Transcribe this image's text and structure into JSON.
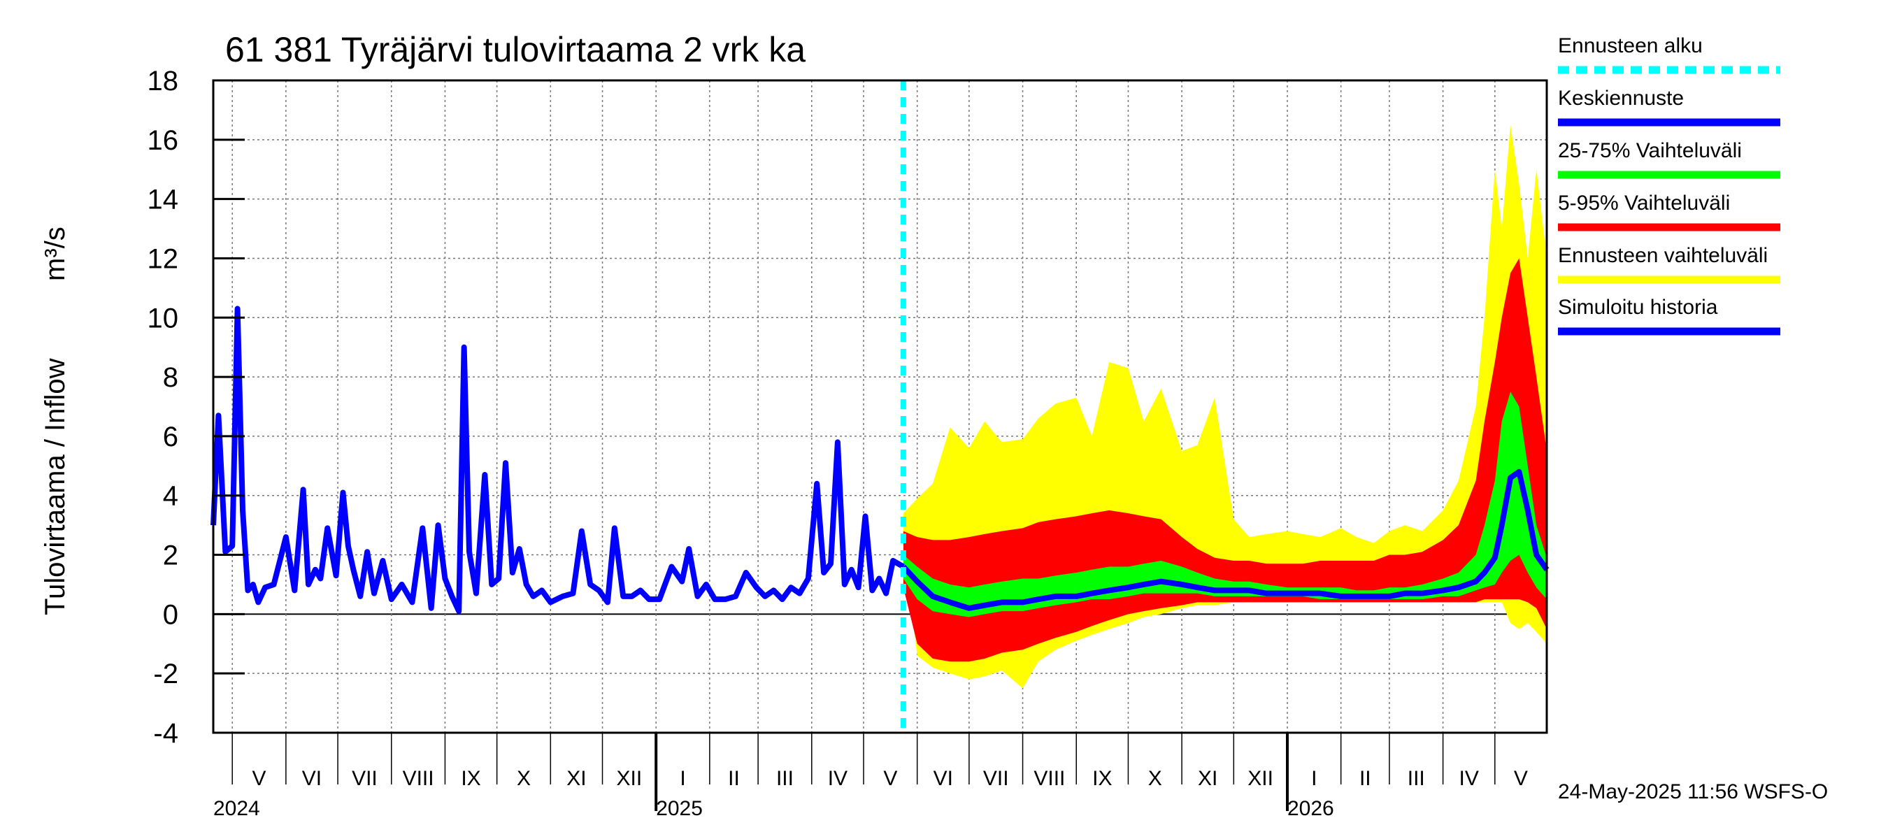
{
  "chart_data": {
    "type": "area",
    "title": "61 381 Tyräjärvi tulovirtaama 2 vrk ka",
    "ylabel": "Tulovirtaama / Inflow",
    "yunit": "m³/s",
    "ylim": [
      -4,
      18
    ],
    "yticks": [
      "-4",
      "-2",
      "0",
      "2",
      "4",
      "6",
      "8",
      "10",
      "12",
      "14",
      "16",
      "18"
    ],
    "grid": true,
    "legend_placement": "right",
    "x_start": "2024-04-20",
    "x_end": "2026-05-31",
    "forecast_start": "2025-05-24",
    "months": [
      {
        "label": "V",
        "start": "2024-05-01"
      },
      {
        "label": "VI",
        "start": "2024-06-01"
      },
      {
        "label": "VII",
        "start": "2024-07-01"
      },
      {
        "label": "VIII",
        "start": "2024-08-01"
      },
      {
        "label": "IX",
        "start": "2024-09-01"
      },
      {
        "label": "X",
        "start": "2024-10-01"
      },
      {
        "label": "XI",
        "start": "2024-11-01"
      },
      {
        "label": "XII",
        "start": "2024-12-01"
      },
      {
        "label": "I",
        "start": "2025-01-01"
      },
      {
        "label": "II",
        "start": "2025-02-01"
      },
      {
        "label": "III",
        "start": "2025-03-01"
      },
      {
        "label": "IV",
        "start": "2025-04-01"
      },
      {
        "label": "V",
        "start": "2025-05-01"
      },
      {
        "label": "VI",
        "start": "2025-06-01"
      },
      {
        "label": "VII",
        "start": "2025-07-01"
      },
      {
        "label": "VIII",
        "start": "2025-08-01"
      },
      {
        "label": "IX",
        "start": "2025-09-01"
      },
      {
        "label": "X",
        "start": "2025-10-01"
      },
      {
        "label": "XI",
        "start": "2025-11-01"
      },
      {
        "label": "XII",
        "start": "2025-12-01"
      },
      {
        "label": "I",
        "start": "2026-01-01"
      },
      {
        "label": "II",
        "start": "2026-02-01"
      },
      {
        "label": "III",
        "start": "2026-03-01"
      },
      {
        "label": "IV",
        "start": "2026-04-01"
      },
      {
        "label": "V",
        "start": "2026-05-01"
      }
    ],
    "years": [
      {
        "label": "2024",
        "date": "2024-04-20"
      },
      {
        "label": "2025",
        "date": "2025-01-01"
      },
      {
        "label": "2026",
        "date": "2026-01-01"
      }
    ],
    "history": {
      "name": "Simuloitu historia",
      "color": "#0000ff",
      "x": [
        "2024-04-20",
        "2024-04-23",
        "2024-04-27",
        "2024-05-01",
        "2024-05-04",
        "2024-05-07",
        "2024-05-10",
        "2024-05-13",
        "2024-05-16",
        "2024-05-20",
        "2024-05-25",
        "2024-06-01",
        "2024-06-06",
        "2024-06-11",
        "2024-06-14",
        "2024-06-18",
        "2024-06-21",
        "2024-06-25",
        "2024-06-30",
        "2024-07-04",
        "2024-07-07",
        "2024-07-10",
        "2024-07-14",
        "2024-07-18",
        "2024-07-22",
        "2024-07-27",
        "2024-08-01",
        "2024-08-07",
        "2024-08-13",
        "2024-08-19",
        "2024-08-24",
        "2024-08-28",
        "2024-09-01",
        "2024-09-05",
        "2024-09-09",
        "2024-09-12",
        "2024-09-15",
        "2024-09-19",
        "2024-09-24",
        "2024-09-28",
        "2024-10-02",
        "2024-10-06",
        "2024-10-10",
        "2024-10-14",
        "2024-10-18",
        "2024-10-22",
        "2024-10-27",
        "2024-11-01",
        "2024-11-08",
        "2024-11-14",
        "2024-11-19",
        "2024-11-24",
        "2024-11-29",
        "2024-12-04",
        "2024-12-08",
        "2024-12-13",
        "2024-12-18",
        "2024-12-23",
        "2024-12-28",
        "2025-01-03",
        "2025-01-10",
        "2025-01-16",
        "2025-01-20",
        "2025-01-25",
        "2025-01-30",
        "2025-02-04",
        "2025-02-10",
        "2025-02-16",
        "2025-02-22",
        "2025-02-28",
        "2025-03-05",
        "2025-03-10",
        "2025-03-15",
        "2025-03-20",
        "2025-03-25",
        "2025-03-30",
        "2025-04-04",
        "2025-04-08",
        "2025-04-12",
        "2025-04-16",
        "2025-04-20",
        "2025-04-24",
        "2025-04-28",
        "2025-05-02",
        "2025-05-06",
        "2025-05-10",
        "2025-05-14",
        "2025-05-18",
        "2025-05-24"
      ],
      "y": [
        3.0,
        6.7,
        2.1,
        2.3,
        10.3,
        3.5,
        0.8,
        1.0,
        0.4,
        0.9,
        1.0,
        2.6,
        0.8,
        4.2,
        1.0,
        1.5,
        1.2,
        2.9,
        1.3,
        4.1,
        2.3,
        1.5,
        0.6,
        2.1,
        0.7,
        1.8,
        0.5,
        1.0,
        0.4,
        2.9,
        0.2,
        3.0,
        1.2,
        0.6,
        0.1,
        9.0,
        2.1,
        0.7,
        4.7,
        1.0,
        1.2,
        5.1,
        1.4,
        2.2,
        1.0,
        0.6,
        0.8,
        0.4,
        0.6,
        0.7,
        2.8,
        1.0,
        0.8,
        0.4,
        2.9,
        0.6,
        0.6,
        0.8,
        0.5,
        0.5,
        1.6,
        1.1,
        2.2,
        0.6,
        1.0,
        0.5,
        0.5,
        0.6,
        1.4,
        0.9,
        0.6,
        0.8,
        0.5,
        0.9,
        0.7,
        1.2,
        4.4,
        1.4,
        1.7,
        5.8,
        1.0,
        1.5,
        0.9,
        3.3,
        0.8,
        1.2,
        0.7,
        1.8,
        1.6
      ]
    },
    "forecast": {
      "x": [
        "2025-05-24",
        "2025-06-01",
        "2025-06-10",
        "2025-06-20",
        "2025-07-01",
        "2025-07-10",
        "2025-07-20",
        "2025-08-01",
        "2025-08-10",
        "2025-08-20",
        "2025-09-01",
        "2025-09-10",
        "2025-09-20",
        "2025-10-01",
        "2025-10-10",
        "2025-10-20",
        "2025-11-01",
        "2025-11-10",
        "2025-11-20",
        "2025-12-01",
        "2025-12-10",
        "2025-12-20",
        "2026-01-01",
        "2026-01-10",
        "2026-01-20",
        "2026-02-01",
        "2026-02-10",
        "2026-02-20",
        "2026-03-01",
        "2026-03-10",
        "2026-03-20",
        "2026-04-01",
        "2026-04-10",
        "2026-04-20",
        "2026-04-25",
        "2026-05-01",
        "2026-05-05",
        "2026-05-10",
        "2026-05-15",
        "2026-05-20",
        "2026-05-25",
        "2026-05-31"
      ],
      "median": [
        1.6,
        1.1,
        0.6,
        0.4,
        0.2,
        0.3,
        0.4,
        0.4,
        0.5,
        0.6,
        0.6,
        0.7,
        0.8,
        0.9,
        1.0,
        1.1,
        1.0,
        0.9,
        0.8,
        0.8,
        0.8,
        0.7,
        0.7,
        0.7,
        0.7,
        0.6,
        0.6,
        0.6,
        0.6,
        0.7,
        0.7,
        0.8,
        0.9,
        1.1,
        1.4,
        1.9,
        3.0,
        4.6,
        4.8,
        3.5,
        2.0,
        1.5
      ],
      "p25": [
        1.2,
        0.5,
        0.1,
        0.0,
        -0.1,
        0.0,
        0.1,
        0.1,
        0.2,
        0.3,
        0.4,
        0.5,
        0.5,
        0.6,
        0.7,
        0.7,
        0.7,
        0.7,
        0.6,
        0.6,
        0.6,
        0.6,
        0.6,
        0.6,
        0.5,
        0.5,
        0.5,
        0.5,
        0.5,
        0.5,
        0.5,
        0.6,
        0.6,
        0.8,
        0.9,
        1.0,
        1.4,
        1.8,
        2.0,
        1.4,
        0.9,
        0.5
      ],
      "p75": [
        2.0,
        1.6,
        1.2,
        1.0,
        0.9,
        1.0,
        1.1,
        1.2,
        1.2,
        1.3,
        1.4,
        1.5,
        1.6,
        1.6,
        1.7,
        1.8,
        1.6,
        1.4,
        1.2,
        1.1,
        1.1,
        1.0,
        0.9,
        0.9,
        0.9,
        0.9,
        0.8,
        0.8,
        0.9,
        0.9,
        1.0,
        1.2,
        1.4,
        2.0,
        3.0,
        4.5,
        6.5,
        7.5,
        7.0,
        5.0,
        3.0,
        1.9
      ],
      "p5": [
        0.9,
        -1.0,
        -1.5,
        -1.6,
        -1.6,
        -1.5,
        -1.3,
        -1.2,
        -1.0,
        -0.8,
        -0.6,
        -0.4,
        -0.2,
        0.0,
        0.1,
        0.2,
        0.3,
        0.4,
        0.4,
        0.4,
        0.4,
        0.4,
        0.4,
        0.4,
        0.4,
        0.4,
        0.4,
        0.4,
        0.4,
        0.4,
        0.4,
        0.4,
        0.4,
        0.4,
        0.5,
        0.5,
        0.5,
        0.5,
        0.5,
        0.4,
        0.2,
        -0.5
      ],
      "p95": [
        2.8,
        2.6,
        2.5,
        2.5,
        2.6,
        2.7,
        2.8,
        2.9,
        3.1,
        3.2,
        3.3,
        3.4,
        3.5,
        3.4,
        3.3,
        3.2,
        2.6,
        2.2,
        1.9,
        1.8,
        1.8,
        1.7,
        1.7,
        1.7,
        1.8,
        1.8,
        1.8,
        1.8,
        2.0,
        2.0,
        2.1,
        2.5,
        3.0,
        4.5,
        6.5,
        8.5,
        10.0,
        11.5,
        12.0,
        10.0,
        8.0,
        5.5
      ],
      "min": [
        2.5,
        -1.4,
        -1.8,
        -2.0,
        -2.2,
        -2.1,
        -1.9,
        -2.5,
        -1.6,
        -1.2,
        -0.9,
        -0.7,
        -0.5,
        -0.3,
        -0.1,
        0.0,
        0.2,
        0.3,
        0.3,
        0.4,
        0.4,
        0.4,
        0.4,
        0.4,
        0.4,
        0.4,
        0.4,
        0.4,
        0.4,
        0.4,
        0.4,
        0.4,
        0.4,
        0.4,
        0.4,
        0.4,
        0.4,
        -0.3,
        -0.5,
        -0.3,
        -0.6,
        -1.0
      ],
      "max": [
        3.4,
        3.9,
        4.4,
        6.3,
        5.6,
        6.5,
        5.8,
        5.9,
        6.6,
        7.1,
        7.3,
        6.0,
        8.5,
        8.3,
        6.5,
        7.6,
        5.5,
        5.7,
        7.3,
        3.2,
        2.6,
        2.7,
        2.8,
        2.7,
        2.6,
        2.9,
        2.6,
        2.4,
        2.8,
        3.0,
        2.8,
        3.5,
        4.5,
        7.0,
        10.0,
        15.0,
        13.0,
        16.5,
        14.5,
        12.0,
        15.0,
        12.0
      ]
    },
    "legend": [
      {
        "label": "Ennusteen alku",
        "color": "#00ffff",
        "style": "dashed"
      },
      {
        "label": "Keskiennuste",
        "color": "#0000ff",
        "style": "solid"
      },
      {
        "label": "25-75% Vaihteluväli",
        "color": "#00ff00",
        "style": "solid"
      },
      {
        "label": "5-95% Vaihteluväli",
        "color": "#ff0000",
        "style": "solid"
      },
      {
        "label": "Ennusteen vaihteluväli",
        "color": "#ffff00",
        "style": "solid"
      },
      {
        "label": "Simuloitu historia",
        "color": "#0000ff",
        "style": "solid"
      }
    ],
    "footer": "24-May-2025 11:56 WSFS-O"
  }
}
